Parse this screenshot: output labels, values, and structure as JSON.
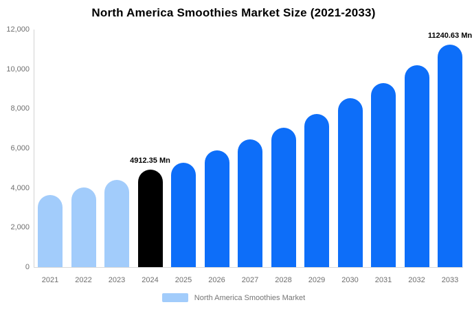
{
  "chart_data": {
    "type": "bar",
    "title": "North America Smoothies Market Size (2021-2033)",
    "categories": [
      "2021",
      "2022",
      "2023",
      "2024",
      "2025",
      "2026",
      "2027",
      "2028",
      "2029",
      "2030",
      "2031",
      "2032",
      "2033"
    ],
    "series": [
      {
        "name": "North America Smoothies Market",
        "values": [
          3650,
          4030,
          4400,
          4912.35,
          5280,
          5890,
          6450,
          7040,
          7730,
          8530,
          9290,
          10190,
          11240.63
        ]
      }
    ],
    "value_unit": "Mn",
    "xlabel": "",
    "ylabel": "",
    "ylim": [
      0,
      12000
    ],
    "ytick_labels": [
      "0",
      "2,000",
      "4,000",
      "6,000",
      "8,000",
      "10,000",
      "12,000"
    ],
    "ytick_values": [
      0,
      2000,
      4000,
      6000,
      8000,
      10000,
      12000
    ],
    "grid": false,
    "legend_position": "bottom",
    "bar_roles": [
      "historical",
      "historical",
      "historical",
      "base_year",
      "forecast",
      "forecast",
      "forecast",
      "forecast",
      "forecast",
      "forecast",
      "forecast",
      "forecast",
      "forecast"
    ],
    "role_colors": {
      "historical": "#a2ccfb",
      "base_year": "#000000",
      "forecast": "#0d6ef9"
    },
    "data_labels": [
      {
        "category": "2024",
        "text": "4912.35 Mn",
        "visible_text": "4912.35 Mn"
      },
      {
        "category": "2033",
        "text": "11240.63 Mn",
        "visible_text": "11240.63 M"
      }
    ]
  },
  "legend": {
    "label": "North America Smoothies Market",
    "swatch_color": "#a2ccfb"
  },
  "colors": {
    "background": "#ffffff",
    "title_text": "#000000",
    "axis_text": "#6e6e6e",
    "legend_text": "#757575",
    "axis_line": "#d2d2d2"
  }
}
